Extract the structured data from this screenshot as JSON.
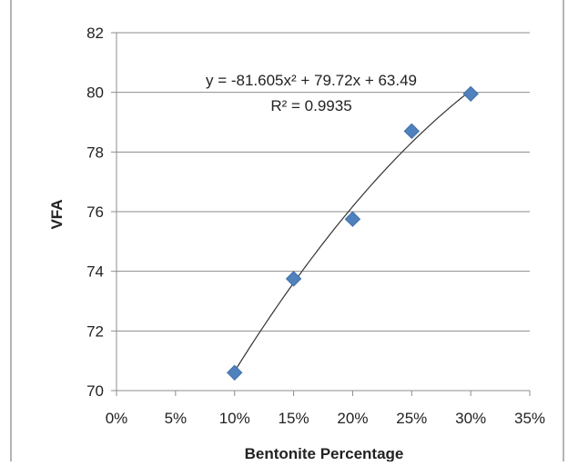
{
  "chart_data": {
    "type": "scatter",
    "title": "",
    "xlabel": "Bentonite Percentage",
    "ylabel": "VFA",
    "x_ticks": [
      "0%",
      "5%",
      "10%",
      "15%",
      "20%",
      "25%",
      "30%",
      "35%"
    ],
    "y_ticks": [
      "70",
      "72",
      "74",
      "76",
      "78",
      "80",
      "82"
    ],
    "xlim": [
      0,
      0.35
    ],
    "ylim": [
      70,
      82
    ],
    "grid": "horizontal",
    "legend": "none",
    "series": [
      {
        "x": [
          0.1,
          0.15,
          0.2,
          0.25,
          0.3
        ],
        "y": [
          70.6,
          73.75,
          75.75,
          78.7,
          79.95
        ],
        "marker": "diamond",
        "color": "#4f81bd"
      }
    ],
    "trendline": {
      "type": "polynomial",
      "coefficients": [
        -81.605,
        79.72,
        63.49
      ],
      "x_range": [
        0.1,
        0.3
      ],
      "color": "#333333"
    },
    "annotations": {
      "equation": "y = -81.605x² + 79.72x + 63.49",
      "r_squared": "R² = 0.9935"
    }
  }
}
